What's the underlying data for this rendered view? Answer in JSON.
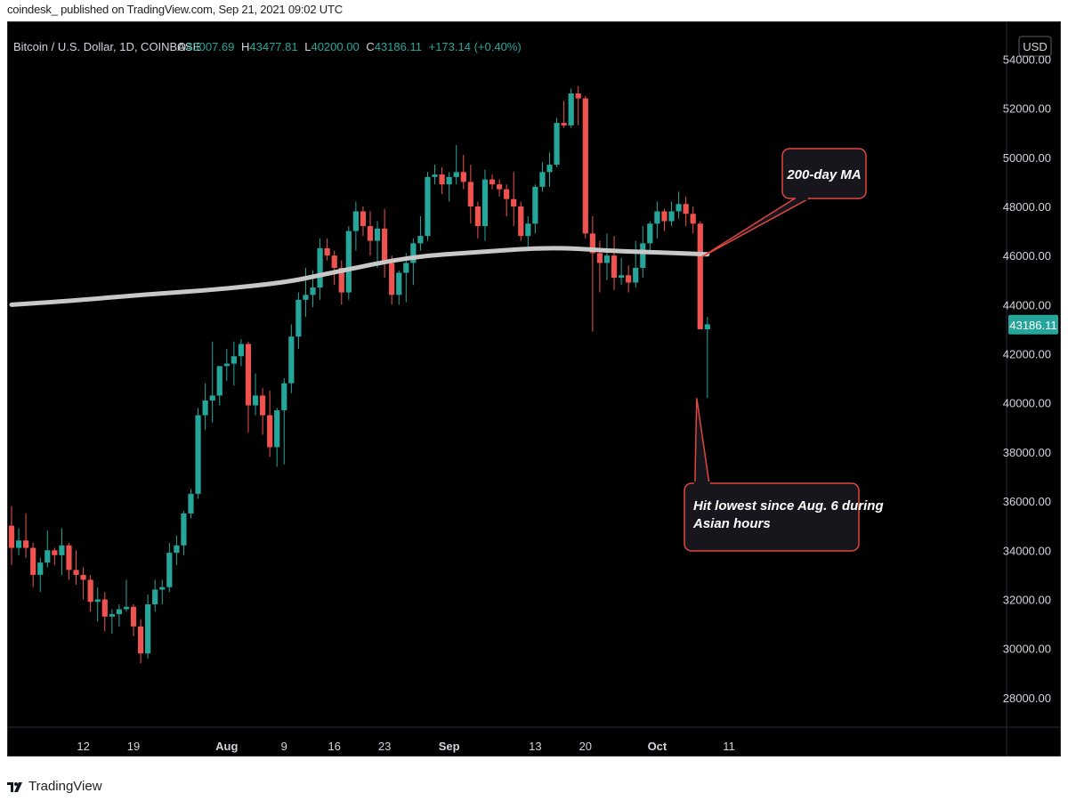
{
  "publisher": "coindesk_ published on TradingView.com, Sep 21, 2021 09:02 UTC",
  "footer": {
    "brand": "TradingView",
    "logo_icon": "tradingview-logo-icon"
  },
  "chart_data": {
    "type": "candlestick",
    "symbol": "Bitcoin / U.S. Dollar, 1D, COINBASE",
    "ohlc_header": {
      "o_label": "O",
      "o": "43007.69",
      "h_label": "H",
      "h": "43477.81",
      "l_label": "L",
      "l": "40200.00",
      "c_label": "C",
      "c": "43186.11",
      "change": "+173.14 (+0.40%)"
    },
    "currency": "USD",
    "last_price": "43186.11",
    "ylim": [
      26800,
      55500
    ],
    "y_ticks": [
      "54000.00",
      "52000.00",
      "50000.00",
      "48000.00",
      "46000.00",
      "44000.00",
      "42000.00",
      "40000.00",
      "38000.00",
      "36000.00",
      "34000.00",
      "32000.00",
      "30000.00",
      "28000.00"
    ],
    "x_ticks": [
      {
        "label": "12",
        "day": 12
      },
      {
        "label": "19",
        "day": 19
      },
      {
        "label": "Aug",
        "day": 32,
        "bold": true
      },
      {
        "label": "9",
        "day": 40
      },
      {
        "label": "16",
        "day": 47
      },
      {
        "label": "23",
        "day": 54
      },
      {
        "label": "Sep",
        "day": 63,
        "bold": true
      },
      {
        "label": "13",
        "day": 75
      },
      {
        "label": "20",
        "day": 82
      },
      {
        "label": "Oct",
        "day": 92,
        "bold": true
      },
      {
        "label": "11",
        "day": 102
      }
    ],
    "x_start_day": 2,
    "x_end_day": 114,
    "colors": {
      "up": "#26a69a",
      "down": "#ef5350",
      "ma": "#c8c8c8",
      "annotation_border": "#e0473f",
      "annotation_bg": "#16161c"
    },
    "candles": [
      [
        2,
        35000,
        35800,
        33400,
        34100
      ],
      [
        3,
        34100,
        34900,
        33800,
        34400
      ],
      [
        4,
        34400,
        35500,
        33700,
        34100
      ],
      [
        5,
        34100,
        34300,
        32500,
        33000
      ],
      [
        6,
        33000,
        33700,
        32300,
        33500
      ],
      [
        7,
        33500,
        34800,
        33300,
        34000
      ],
      [
        8,
        34000,
        34100,
        33400,
        33800
      ],
      [
        9,
        33800,
        34900,
        33000,
        34200
      ],
      [
        10,
        34200,
        34300,
        32800,
        33200
      ],
      [
        11,
        33200,
        34000,
        32600,
        33000
      ],
      [
        12,
        33000,
        33300,
        32000,
        32800
      ],
      [
        13,
        32800,
        33000,
        31500,
        31900
      ],
      [
        14,
        31900,
        32500,
        31100,
        32000
      ],
      [
        15,
        32000,
        32300,
        30700,
        31300
      ],
      [
        16,
        31300,
        31600,
        30600,
        31400
      ],
      [
        17,
        31400,
        31800,
        30900,
        31600
      ],
      [
        18,
        31600,
        32800,
        31500,
        31700
      ],
      [
        19,
        31700,
        31800,
        30500,
        30900
      ],
      [
        20,
        30900,
        31200,
        29400,
        29800
      ],
      [
        21,
        29800,
        32200,
        29600,
        31800
      ],
      [
        22,
        31800,
        32800,
        31500,
        32400
      ],
      [
        23,
        32400,
        32800,
        31800,
        32500
      ],
      [
        24,
        32500,
        34300,
        32300,
        33900
      ],
      [
        25,
        33900,
        34600,
        33400,
        34200
      ],
      [
        26,
        34200,
        35600,
        33800,
        35500
      ],
      [
        27,
        35500,
        36500,
        35300,
        36300
      ],
      [
        28,
        36300,
        39800,
        36100,
        39500
      ],
      [
        29,
        39500,
        40800,
        38900,
        40100
      ],
      [
        30,
        40100,
        42500,
        39200,
        40300
      ],
      [
        31,
        40300,
        41500,
        39900,
        41500
      ],
      [
        32,
        41500,
        42200,
        40900,
        41600
      ],
      [
        33,
        41600,
        42500,
        40700,
        41900
      ],
      [
        34,
        41900,
        42600,
        41500,
        42400
      ],
      [
        35,
        42400,
        42500,
        38800,
        39900
      ],
      [
        36,
        39900,
        41200,
        39500,
        40300
      ],
      [
        37,
        40300,
        40600,
        38700,
        39500
      ],
      [
        38,
        39500,
        40500,
        37800,
        38200
      ],
      [
        39,
        38200,
        39800,
        37400,
        39700
      ],
      [
        40,
        39700,
        41000,
        37500,
        40800
      ],
      [
        41,
        40800,
        43200,
        40400,
        42700
      ],
      [
        42,
        42700,
        44500,
        42200,
        44200
      ],
      [
        43,
        44200,
        45500,
        43500,
        44400
      ],
      [
        44,
        44400,
        45400,
        43900,
        44700
      ],
      [
        45,
        44700,
        46700,
        44200,
        46300
      ],
      [
        46,
        46300,
        46700,
        45800,
        46000
      ],
      [
        47,
        46000,
        46200,
        44800,
        45500
      ],
      [
        48,
        45500,
        45800,
        44000,
        44500
      ],
      [
        49,
        44500,
        47200,
        44200,
        47000
      ],
      [
        50,
        47000,
        48200,
        46200,
        47800
      ],
      [
        51,
        47800,
        48000,
        46800,
        47200
      ],
      [
        52,
        47200,
        47800,
        46000,
        46600
      ],
      [
        53,
        46600,
        47400,
        45500,
        47100
      ],
      [
        54,
        47100,
        47900,
        45100,
        45700
      ],
      [
        55,
        45700,
        46000,
        44000,
        44400
      ],
      [
        56,
        44400,
        45400,
        44000,
        45300
      ],
      [
        57,
        45300,
        46100,
        44100,
        45700
      ],
      [
        58,
        45700,
        46700,
        44800,
        46500
      ],
      [
        59,
        46500,
        47600,
        46200,
        46800
      ],
      [
        60,
        46800,
        49400,
        46600,
        49200
      ],
      [
        61,
        49200,
        49700,
        48900,
        49300
      ],
      [
        62,
        49300,
        49600,
        48500,
        48900
      ],
      [
        63,
        48900,
        49400,
        48200,
        49200
      ],
      [
        64,
        49200,
        50500,
        48900,
        49400
      ],
      [
        65,
        49400,
        50100,
        48700,
        49000
      ],
      [
        66,
        49000,
        49700,
        47300,
        48000
      ],
      [
        67,
        48000,
        48200,
        46700,
        47200
      ],
      [
        68,
        47200,
        49500,
        46600,
        49100
      ],
      [
        69,
        49100,
        49300,
        48700,
        48900
      ],
      [
        70,
        48900,
        49100,
        48400,
        48700
      ],
      [
        71,
        48700,
        48900,
        47600,
        48300
      ],
      [
        72,
        48300,
        49400,
        47200,
        48000
      ],
      [
        73,
        48000,
        48200,
        46600,
        46800
      ],
      [
        74,
        46800,
        47600,
        46300,
        47300
      ],
      [
        75,
        47300,
        48900,
        46900,
        48800
      ],
      [
        76,
        48800,
        49800,
        48600,
        49400
      ],
      [
        77,
        49400,
        50200,
        48800,
        49700
      ],
      [
        78,
        49700,
        51600,
        49600,
        51400
      ],
      [
        79,
        51400,
        52300,
        51200,
        51300
      ],
      [
        80,
        51300,
        52800,
        51200,
        52600
      ],
      [
        81,
        52600,
        52900,
        51300,
        52400
      ],
      [
        82,
        52400,
        52500,
        46700,
        46900
      ],
      [
        83,
        46900,
        47600,
        42900,
        46100
      ],
      [
        84,
        46100,
        46600,
        44500,
        45700
      ],
      [
        85,
        45700,
        46900,
        45000,
        46000
      ],
      [
        86,
        46000,
        46800,
        44600,
        45100
      ],
      [
        87,
        45100,
        45900,
        44800,
        45200
      ],
      [
        88,
        45200,
        45600,
        44500,
        44900
      ],
      [
        89,
        44900,
        46600,
        44700,
        45500
      ],
      [
        90,
        45500,
        47200,
        45100,
        46500
      ],
      [
        91,
        46500,
        47400,
        46100,
        47300
      ],
      [
        92,
        47300,
        48200,
        46700,
        47800
      ],
      [
        93,
        47800,
        47900,
        47000,
        47400
      ],
      [
        94,
        47400,
        48200,
        47200,
        47800
      ],
      [
        95,
        47800,
        48600,
        47500,
        48100
      ],
      [
        96,
        48100,
        48400,
        47200,
        47700
      ],
      [
        97,
        47700,
        48000,
        46900,
        47300
      ],
      [
        98,
        47300,
        47400,
        43000,
        43000
      ],
      [
        99,
        43000,
        43500,
        40200,
        43200
      ]
    ],
    "ma_200": [
      [
        2,
        44000
      ],
      [
        10,
        44150
      ],
      [
        20,
        44400
      ],
      [
        30,
        44600
      ],
      [
        40,
        44900
      ],
      [
        45,
        45200
      ],
      [
        50,
        45500
      ],
      [
        55,
        45800
      ],
      [
        60,
        46000
      ],
      [
        65,
        46100
      ],
      [
        70,
        46200
      ],
      [
        75,
        46300
      ],
      [
        80,
        46300
      ],
      [
        85,
        46200
      ],
      [
        90,
        46150
      ],
      [
        95,
        46100
      ],
      [
        99,
        46050
      ]
    ],
    "annotations": [
      {
        "text": "200-day MA",
        "anchor": [
          99,
          45950
        ]
      },
      {
        "text_lines": [
          "Hit lowest since Aug. 6 during",
          "Asian hours"
        ],
        "anchor": [
          99,
          40200
        ]
      }
    ]
  }
}
